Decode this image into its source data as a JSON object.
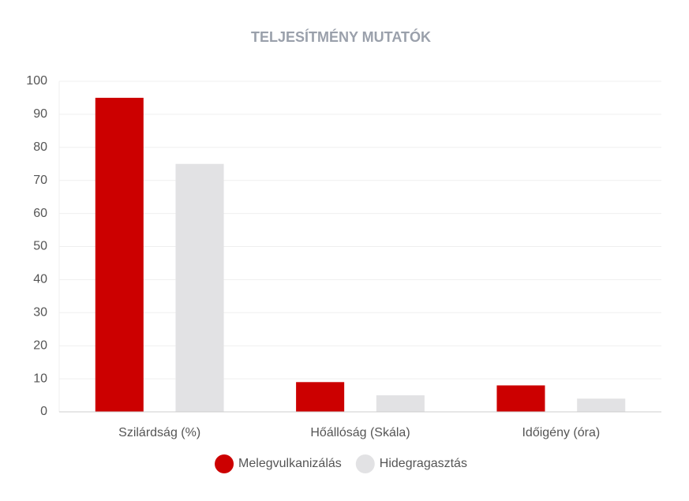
{
  "chart_data": {
    "type": "bar",
    "title": "TELJESÍTMÉNY MUTATÓK",
    "categories": [
      "Szilárdság (%)",
      "Hőállóság (Skála)",
      "Időigény (óra)"
    ],
    "series": [
      {
        "name": "Melegvulkanizálás",
        "color": "#cc0000",
        "values": [
          95,
          9,
          8
        ]
      },
      {
        "name": "Hidegragasztás",
        "color": "#e2e2e4",
        "values": [
          75,
          5,
          4
        ]
      }
    ],
    "ylim": [
      0,
      100
    ],
    "yticks": [
      0,
      10,
      20,
      30,
      40,
      50,
      60,
      70,
      80,
      90,
      100
    ],
    "grid": true,
    "legend": "bottom"
  }
}
